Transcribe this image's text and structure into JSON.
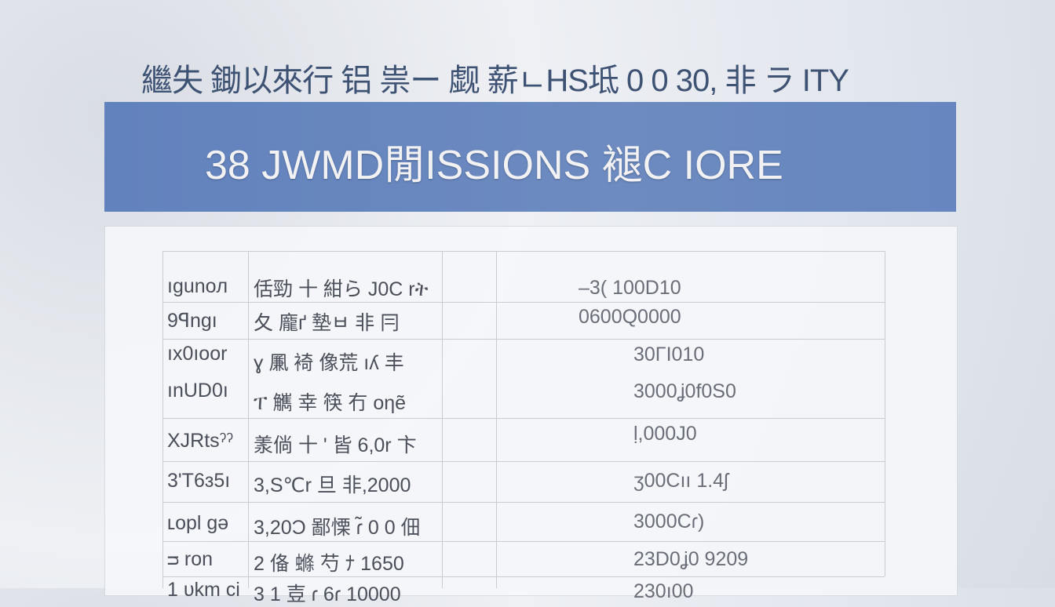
{
  "headline": "繼失 鋤以來行 铝 祟ー 觑 薪ㄴHS坻   0 0 30, 非 ラ ITY",
  "banner": {
    "title": "38  JWMD閒ISSIONS 褪C IORE"
  },
  "table": {
    "rows": [
      {
        "col1": "ıgunoл",
        "col2": "佸勁 十 紺ら  J0C rት",
        "col3": "–3(   100D10"
      },
      {
        "col1": "9ꟼngı",
        "col2": "夂 龐ґ  墊ㅂ 非 冃",
        "col3": "0600Q0000"
      },
      {
        "col1": "ıx0ıoor",
        "col2": "ɣ 凲 裿  像荒 ıʎ 丰",
        "col3": "30ΓΙ010"
      },
      {
        "col1": "ınUD0ı",
        "col2": "ፐ 觽 幸  筷 冇 oηẽ",
        "col3": "3000ʝ0f0S0"
      },
      {
        "col1": "XJRtsˀˀ",
        "col2": "羕倘 十 ' 皆  6,0r 卞",
        "col3": "ḷ,000J0"
      },
      {
        "col1": "3'T6ɜ5ı",
        "col2": "3,S℃r  旦  非,2000",
        "col3": "ʒ00Cıı  1.4ʃ"
      },
      {
        "col1": "ʟopl gə",
        "col2": "3,20Ɔ  鄙慄 ɾ̃ 0 0 佃",
        "col3": "3000Cɾ)"
      },
      {
        "col1": "ᴝ  ron",
        "col2": "2 俻 螩 芍  ﾅ 1650",
        "col3": "23D0ʝ0 9209"
      },
      {
        "col1": "1 ᴜkm ci",
        "col2": "3 1  壴  ɾ 6ɾ 10000",
        "col3": "230ı00"
      }
    ]
  }
}
